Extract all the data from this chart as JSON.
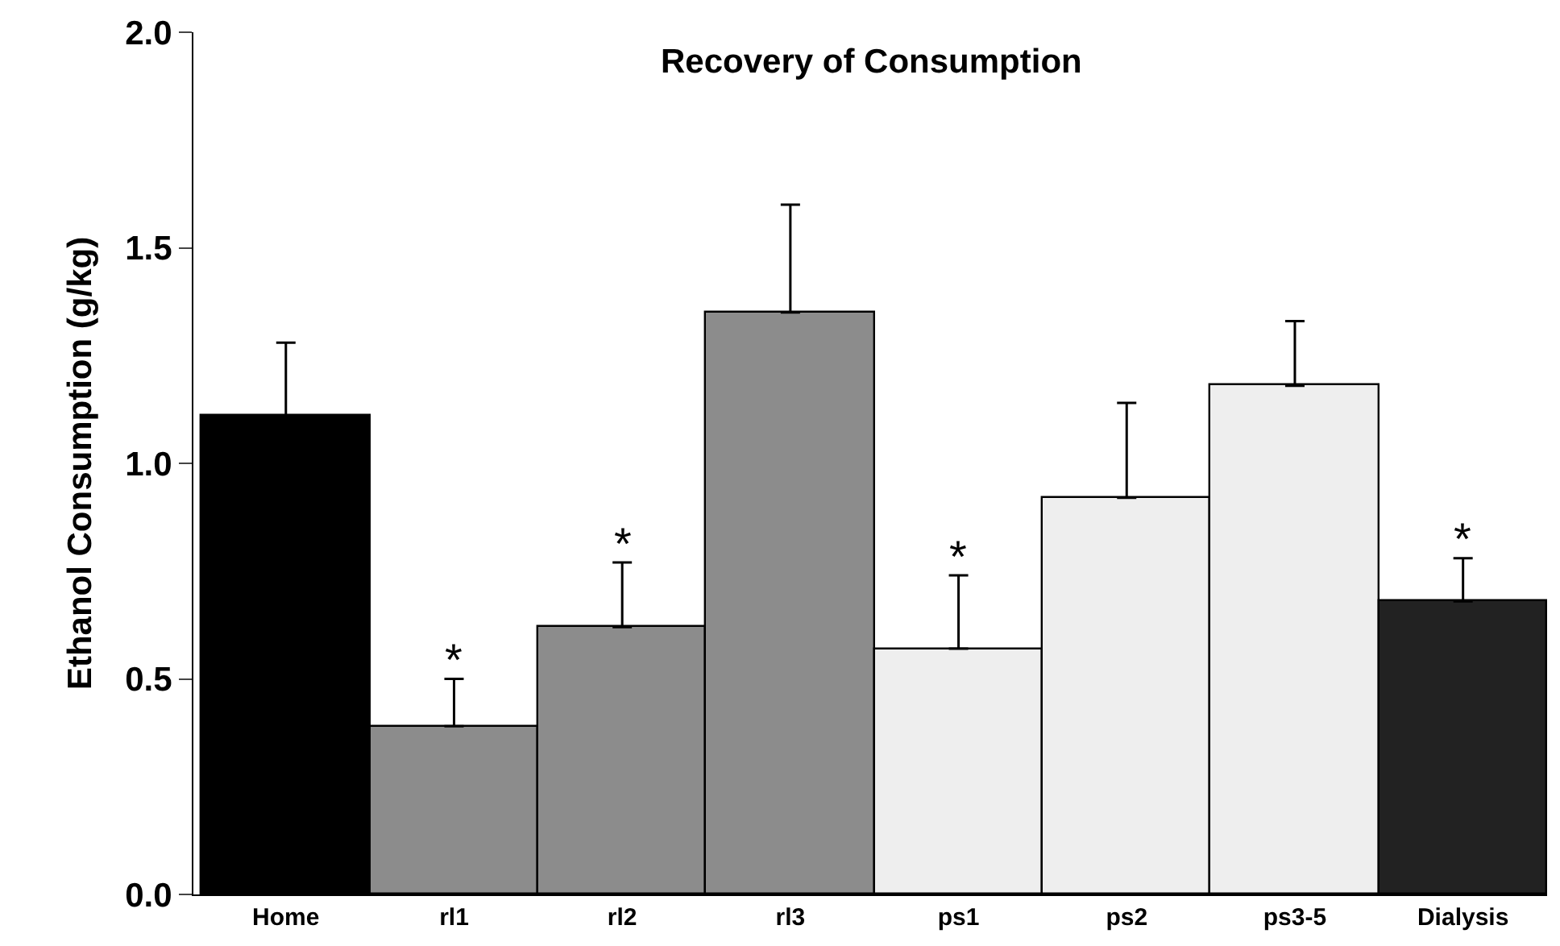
{
  "chart_data": {
    "type": "bar",
    "title": "Recovery of Consumption",
    "ylabel": "Ethanol Consumption (g/kg)",
    "categories": [
      "Home",
      "rl1",
      "rl2",
      "rl3",
      "ps1",
      "ps2",
      "ps3-5",
      "Dialysis"
    ],
    "values": [
      1.11,
      0.39,
      0.62,
      1.35,
      0.57,
      0.92,
      1.18,
      0.68
    ],
    "colors": [
      "#000000",
      "#8c8c8c",
      "#8c8c8c",
      "#8c8c8c",
      "#eeeeee",
      "#eeeeee",
      "#eeeeee",
      "#222222"
    ],
    "errors": [
      [
        1.11,
        1.28
      ],
      [
        0.39,
        0.5
      ],
      [
        0.62,
        0.77
      ],
      [
        1.35,
        1.6
      ],
      [
        0.57,
        0.74
      ],
      [
        0.92,
        1.14
      ],
      [
        1.18,
        1.33
      ],
      [
        0.68,
        0.78
      ]
    ],
    "annotations": [
      {
        "text": "*",
        "x": "rl1",
        "y": 0.5
      },
      {
        "text": "*",
        "x": "rl2",
        "y": 0.77
      },
      {
        "text": "*",
        "x": "ps1",
        "y": 0.74
      },
      {
        "text": "*",
        "x": "Dialysis",
        "y": 0.78
      }
    ],
    "ylim": [
      0,
      2
    ],
    "yticks": [
      {
        "value": 0,
        "label": "0.0"
      },
      0.5,
      {
        "value": 1,
        "label": "1.0"
      },
      1.5,
      {
        "value": 2,
        "label": "2.0"
      }
    ]
  }
}
